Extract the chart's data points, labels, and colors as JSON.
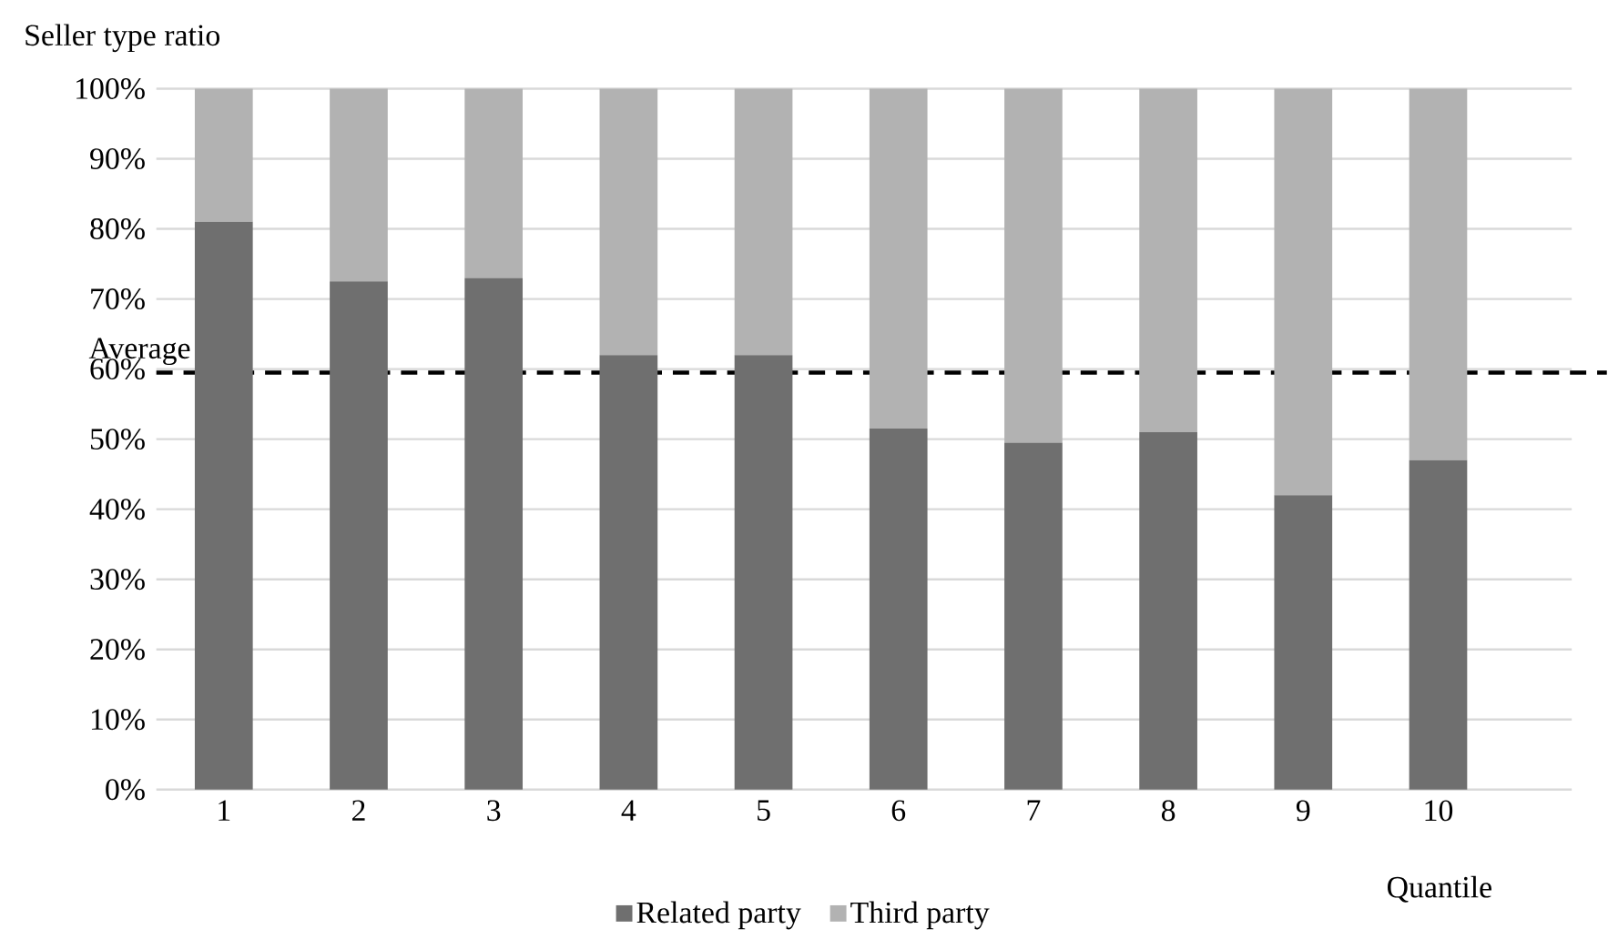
{
  "chart_data": {
    "type": "bar",
    "stacked": true,
    "title": "Seller type ratio",
    "xlabel": "Quantile",
    "categories": [
      "1",
      "2",
      "3",
      "4",
      "5",
      "6",
      "7",
      "8",
      "9",
      "10"
    ],
    "series": [
      {
        "name": "Related party",
        "color": "#6f6f6f",
        "values": [
          81,
          72.5,
          73,
          62,
          62,
          51.5,
          49.5,
          51,
          42,
          47
        ]
      },
      {
        "name": "Third party",
        "color": "#b2b2b2",
        "values": [
          19,
          27.5,
          27,
          38,
          38,
          48.5,
          50.5,
          49,
          58,
          53
        ]
      }
    ],
    "ylim": [
      0,
      100
    ],
    "yticks": [
      {
        "value": 0,
        "label": "0%"
      },
      {
        "value": 10,
        "label": "10%"
      },
      {
        "value": 20,
        "label": "20%"
      },
      {
        "value": 30,
        "label": "30%"
      },
      {
        "value": 40,
        "label": "40%"
      },
      {
        "value": 50,
        "label": "50%"
      },
      {
        "value": 60,
        "label": "60%"
      },
      {
        "value": 70,
        "label": "70%"
      },
      {
        "value": 80,
        "label": "80%"
      },
      {
        "value": 90,
        "label": "90%"
      },
      {
        "value": 100,
        "label": "100%"
      }
    ],
    "ref_lines": [
      {
        "axis": "y",
        "value": 59.5,
        "label": "Average",
        "color": "#000000",
        "line_style": "dashed"
      }
    ],
    "grid": "y",
    "legend": "bottom"
  }
}
